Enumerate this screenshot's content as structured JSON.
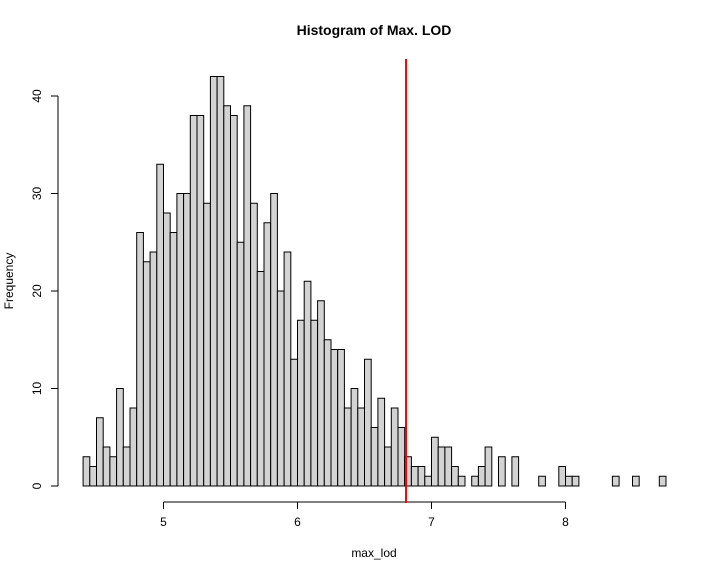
{
  "chart_data": {
    "type": "bar",
    "title": "Histogram of Max. LOD",
    "xlabel": "max_lod",
    "ylabel": "Frequency",
    "bin_start": 4.4,
    "bin_width": 0.05,
    "counts": [
      3,
      2,
      7,
      4,
      3,
      10,
      4,
      8,
      26,
      23,
      24,
      33,
      28,
      26,
      30,
      30,
      38,
      38,
      29,
      42,
      42,
      39,
      38,
      25,
      39,
      29,
      22,
      27,
      30,
      20,
      24,
      13,
      17,
      21,
      17,
      19,
      15,
      14,
      14,
      8,
      10,
      8,
      13,
      6,
      9,
      4,
      8,
      6,
      3,
      2,
      2,
      1,
      5,
      4,
      4,
      2,
      1,
      0,
      1,
      2,
      4,
      0,
      3,
      0,
      3,
      0,
      0,
      0,
      1,
      0,
      0,
      2,
      1,
      1,
      0,
      0,
      0,
      0,
      0,
      1,
      0,
      0,
      1,
      0,
      0,
      0,
      1
    ],
    "xlim": [
      4.4,
      8.75
    ],
    "ylim": [
      0,
      42
    ],
    "x_ticks": [
      5,
      6,
      7,
      8
    ],
    "x_tick_labels": [
      "5",
      "6",
      "7",
      "8"
    ],
    "y_ticks": [
      0,
      10,
      20,
      30,
      40
    ],
    "y_tick_labels": [
      "0",
      "10",
      "20",
      "30",
      "40"
    ],
    "ref_line_x": 6.81,
    "colors": {
      "bar_fill": "#d3d3d3",
      "bar_stroke": "#000000",
      "ref_line": "#ff0000"
    }
  }
}
